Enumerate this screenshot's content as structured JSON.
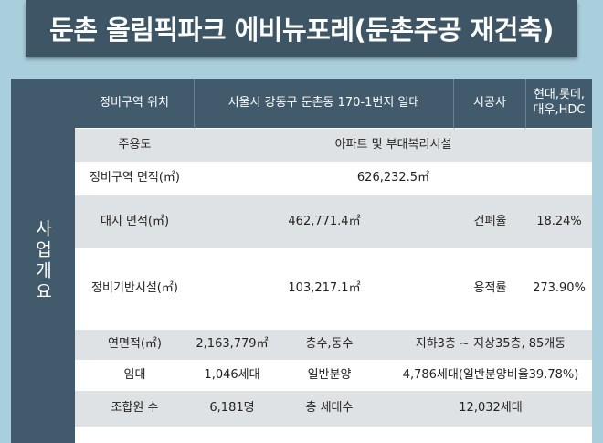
{
  "title": "둔촌 올림픽파크 에비뉴포레(둔촌주공 재건축)",
  "side_label": "사업개요",
  "header": {
    "location_label": "정비구역 위치",
    "location_value": "서울시 강동구 둔촌동 170-1번지 일대",
    "builder_label": "시공사",
    "builder_value": "현대,롯데, 대우,HDC"
  },
  "rows": {
    "usage_label": "주용도",
    "usage_value": "아파트 및 부대복리시설",
    "zone_area_label": "정비구역 면적(㎡)",
    "zone_area_value": "626,232.5㎡",
    "site_area_label": "대지 면적(㎡)",
    "site_area_value": "462,771.4㎡",
    "coverage_label": "건폐율",
    "coverage_value": "18.24%",
    "infra_label": "정비기반시설(㎡)",
    "infra_value": "103,217.1㎡",
    "far_label": "용적률",
    "far_value": "273.90%",
    "gfa_label": "연면적(㎡)",
    "gfa_value": "2,163,779㎡",
    "floors_label": "층수,동수",
    "floors_value": "지하3층 ~ 지상35층, 85개동",
    "rental_label": "임대",
    "rental_value": "1,046세대",
    "general_label": "일반분양",
    "general_value": "4,786세대(일반분양비율39.78%)",
    "members_label": "조합원 수",
    "members_value": "6,181명",
    "total_label": "총 세대수",
    "total_value": "12,032세대"
  }
}
